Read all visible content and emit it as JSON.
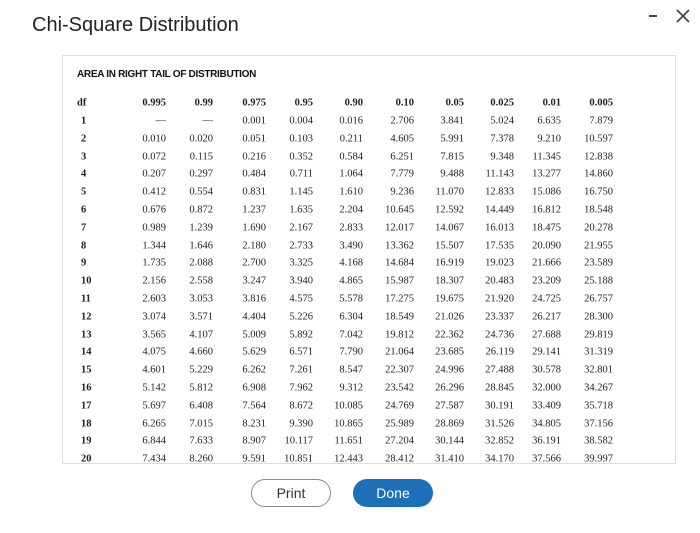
{
  "header": {
    "title": "Chi-Square Distribution"
  },
  "table": {
    "caption": "AREA IN RIGHT TAIL OF DISTRIBUTION",
    "columns": [
      "df",
      "0.995",
      "0.99",
      "0.975",
      "0.95",
      "0.90",
      "0.10",
      "0.05",
      "0.025",
      "0.01",
      "0.005"
    ],
    "rows": [
      [
        "1",
        "—",
        "—",
        "0.001",
        "0.004",
        "0.016",
        "2.706",
        "3.841",
        "5.024",
        "6.635",
        "7.879"
      ],
      [
        "2",
        "0.010",
        "0.020",
        "0.051",
        "0.103",
        "0.211",
        "4.605",
        "5.991",
        "7.378",
        "9.210",
        "10.597"
      ],
      [
        "3",
        "0.072",
        "0.115",
        "0.216",
        "0.352",
        "0.584",
        "6.251",
        "7.815",
        "9.348",
        "11.345",
        "12.838"
      ],
      [
        "4",
        "0.207",
        "0.297",
        "0.484",
        "0.711",
        "1.064",
        "7.779",
        "9.488",
        "11.143",
        "13.277",
        "14.860"
      ],
      [
        "5",
        "0.412",
        "0.554",
        "0.831",
        "1.145",
        "1.610",
        "9.236",
        "11.070",
        "12.833",
        "15.086",
        "16.750"
      ],
      [
        "6",
        "0.676",
        "0.872",
        "1.237",
        "1.635",
        "2.204",
        "10.645",
        "12.592",
        "14.449",
        "16.812",
        "18.548"
      ],
      [
        "7",
        "0.989",
        "1.239",
        "1.690",
        "2.167",
        "2.833",
        "12.017",
        "14.067",
        "16.013",
        "18.475",
        "20.278"
      ],
      [
        "8",
        "1.344",
        "1.646",
        "2.180",
        "2.733",
        "3.490",
        "13.362",
        "15.507",
        "17.535",
        "20.090",
        "21.955"
      ],
      [
        "9",
        "1.735",
        "2.088",
        "2.700",
        "3.325",
        "4.168",
        "14.684",
        "16.919",
        "19.023",
        "21.666",
        "23.589"
      ],
      [
        "10",
        "2.156",
        "2.558",
        "3.247",
        "3.940",
        "4.865",
        "15.987",
        "18.307",
        "20.483",
        "23.209",
        "25.188"
      ],
      [
        "11",
        "2.603",
        "3.053",
        "3.816",
        "4.575",
        "5.578",
        "17.275",
        "19.675",
        "21.920",
        "24.725",
        "26.757"
      ],
      [
        "12",
        "3.074",
        "3.571",
        "4.404",
        "5.226",
        "6.304",
        "18.549",
        "21.026",
        "23.337",
        "26.217",
        "28.300"
      ],
      [
        "13",
        "3.565",
        "4.107",
        "5.009",
        "5.892",
        "7.042",
        "19.812",
        "22.362",
        "24.736",
        "27.688",
        "29.819"
      ],
      [
        "14",
        "4.075",
        "4.660",
        "5.629",
        "6.571",
        "7.790",
        "21.064",
        "23.685",
        "26.119",
        "29.141",
        "31.319"
      ],
      [
        "15",
        "4.601",
        "5.229",
        "6.262",
        "7.261",
        "8.547",
        "22.307",
        "24.996",
        "27.488",
        "30.578",
        "32.801"
      ],
      [
        "16",
        "5.142",
        "5.812",
        "6.908",
        "7.962",
        "9.312",
        "23.542",
        "26.296",
        "28.845",
        "32.000",
        "34.267"
      ],
      [
        "17",
        "5.697",
        "6.408",
        "7.564",
        "8.672",
        "10.085",
        "24.769",
        "27.587",
        "30.191",
        "33.409",
        "35.718"
      ],
      [
        "18",
        "6.265",
        "7.015",
        "8.231",
        "9.390",
        "10.865",
        "25.989",
        "28.869",
        "31.526",
        "34.805",
        "37.156"
      ],
      [
        "19",
        "6.844",
        "7.633",
        "8.907",
        "10.117",
        "11.651",
        "27.204",
        "30.144",
        "32.852",
        "36.191",
        "38.582"
      ],
      [
        "20",
        "7.434",
        "8.260",
        "9.591",
        "10.851",
        "12.443",
        "28.412",
        "31.410",
        "34.170",
        "37.566",
        "39.997"
      ]
    ]
  },
  "buttons": [
    "Print",
    "Done"
  ]
}
